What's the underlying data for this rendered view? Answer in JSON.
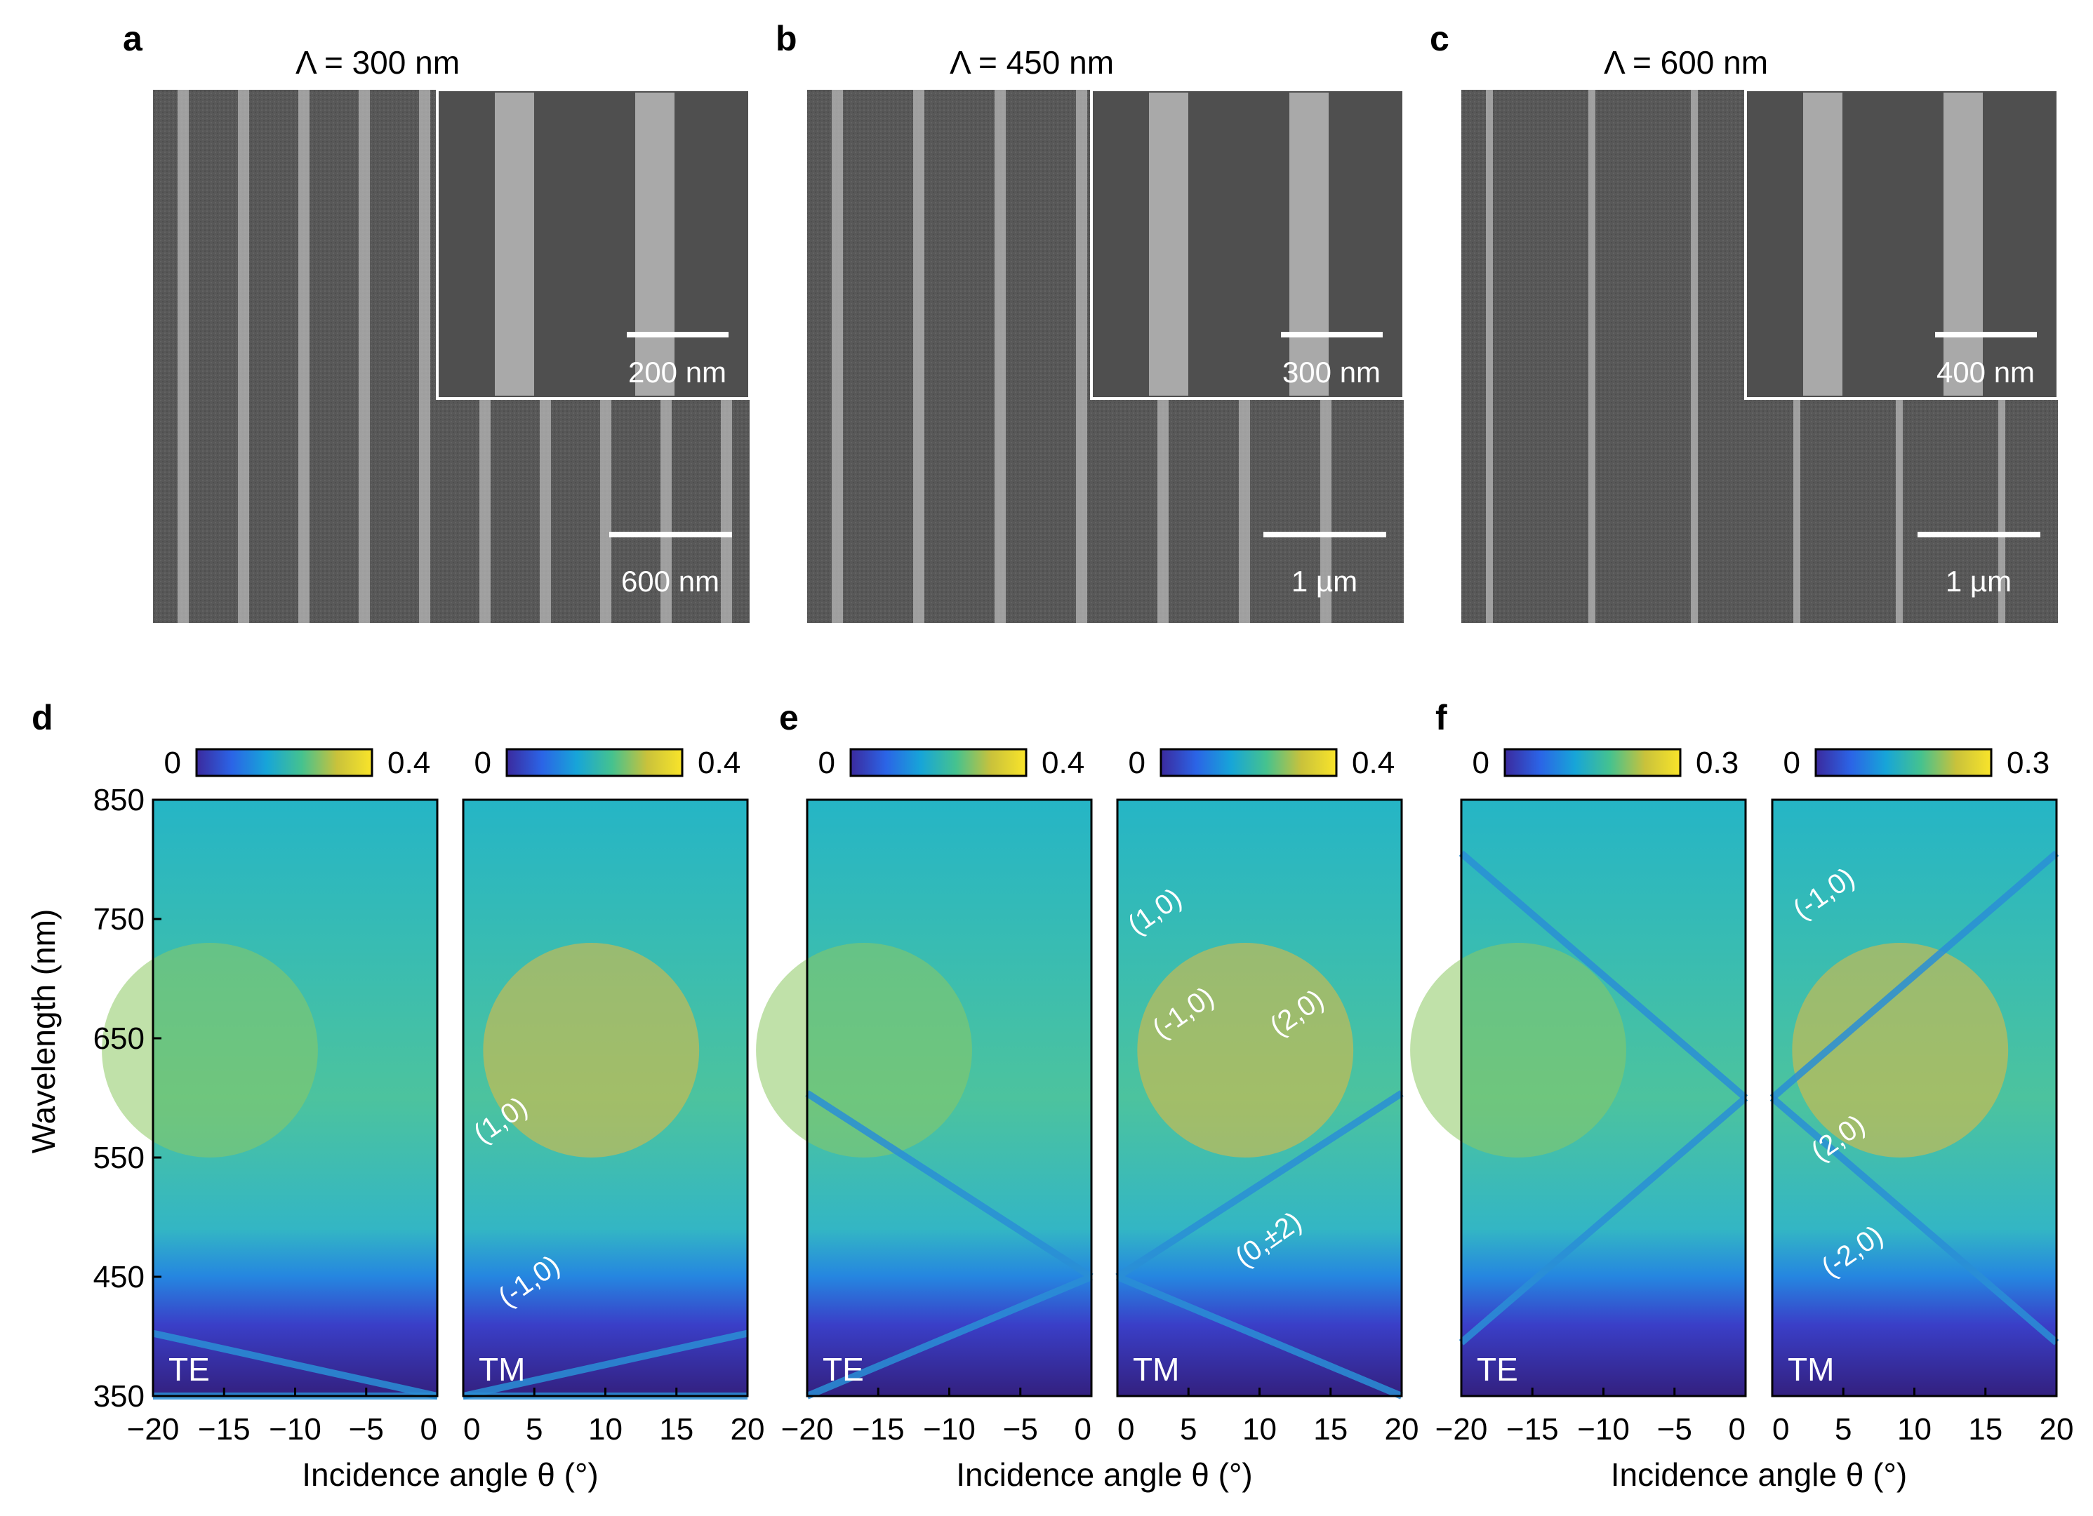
{
  "panels": {
    "a": {
      "letter": "a",
      "title": "Λ = 300 nm",
      "scale_main": "600 nm",
      "scale_inset": "200 nm",
      "period": 300
    },
    "b": {
      "letter": "b",
      "title": "Λ = 450 nm",
      "scale_main": "1 µm",
      "scale_inset": "300 nm",
      "period": 450
    },
    "c": {
      "letter": "c",
      "title": "Λ = 600 nm",
      "scale_main": "1 µm",
      "scale_inset": "400 nm",
      "period": 600
    }
  },
  "chart_data": [
    {
      "type": "heatmap",
      "panel": "d",
      "polarization": "TE",
      "xlim": [
        -20,
        0
      ],
      "ylim": [
        350,
        850
      ],
      "colorbar": {
        "min": "0",
        "max": "0.4"
      },
      "xticks": [
        "−20",
        "−15",
        "−10",
        "−5",
        "0"
      ],
      "yticks": [
        "850",
        "750",
        "650",
        "550",
        "450",
        "350"
      ],
      "ylabel": "Wavelength (nm)",
      "xlabel": "Incidence angle θ (°)",
      "annotations": []
    },
    {
      "type": "heatmap",
      "panel": "d",
      "polarization": "TM",
      "xlim": [
        0,
        20
      ],
      "ylim": [
        350,
        850
      ],
      "colorbar": {
        "min": "0",
        "max": "0.4"
      },
      "xticks": [
        "0",
        "5",
        "10",
        "15",
        "20"
      ],
      "annotations": [
        {
          "text": "(1,0)",
          "x": 3,
          "y": 575
        },
        {
          "text": "(-1,0)",
          "x": 5,
          "y": 440
        }
      ]
    },
    {
      "type": "heatmap",
      "panel": "e",
      "polarization": "TE",
      "xlim": [
        -20,
        0
      ],
      "ylim": [
        350,
        850
      ],
      "colorbar": {
        "min": "0",
        "max": "0.4"
      },
      "xticks": [
        "−20",
        "−15",
        "−10",
        "−5",
        "0"
      ],
      "xlabel": "Incidence angle θ (°)",
      "annotations": []
    },
    {
      "type": "heatmap",
      "panel": "e",
      "polarization": "TM",
      "xlim": [
        0,
        20
      ],
      "ylim": [
        350,
        850
      ],
      "colorbar": {
        "min": "0",
        "max": "0.4"
      },
      "xticks": [
        "0",
        "5",
        "10",
        "15",
        "20"
      ],
      "annotations": [
        {
          "text": "(1,0)",
          "x": 3,
          "y": 750
        },
        {
          "text": "(-1,0)",
          "x": 5,
          "y": 665
        },
        {
          "text": "(2,0)",
          "x": 13,
          "y": 665
        },
        {
          "text": "(0,±2)",
          "x": 11,
          "y": 475
        }
      ]
    },
    {
      "type": "heatmap",
      "panel": "f",
      "polarization": "TE",
      "xlim": [
        -20,
        0
      ],
      "ylim": [
        350,
        850
      ],
      "colorbar": {
        "min": "0",
        "max": "0.3"
      },
      "xticks": [
        "−20",
        "−15",
        "−10",
        "−5",
        "0"
      ],
      "xlabel": "Incidence angle θ (°)",
      "annotations": []
    },
    {
      "type": "heatmap",
      "panel": "f",
      "polarization": "TM",
      "xlim": [
        0,
        20
      ],
      "ylim": [
        350,
        850
      ],
      "colorbar": {
        "min": "0",
        "max": "0.3"
      },
      "xticks": [
        "0",
        "5",
        "10",
        "15",
        "20"
      ],
      "annotations": [
        {
          "text": "(-1,0)",
          "x": 4,
          "y": 765
        },
        {
          "text": "(2,0)",
          "x": 5,
          "y": 560
        },
        {
          "text": "(-2,0)",
          "x": 6,
          "y": 465
        }
      ]
    }
  ],
  "panel_letters": {
    "d": "d",
    "e": "e",
    "f": "f"
  },
  "colormap": [
    "#3e1e8f",
    "#2f5ee8",
    "#1aa5d9",
    "#2ec1a4",
    "#7fcf5a",
    "#e8be3a",
    "#fbe52a"
  ]
}
